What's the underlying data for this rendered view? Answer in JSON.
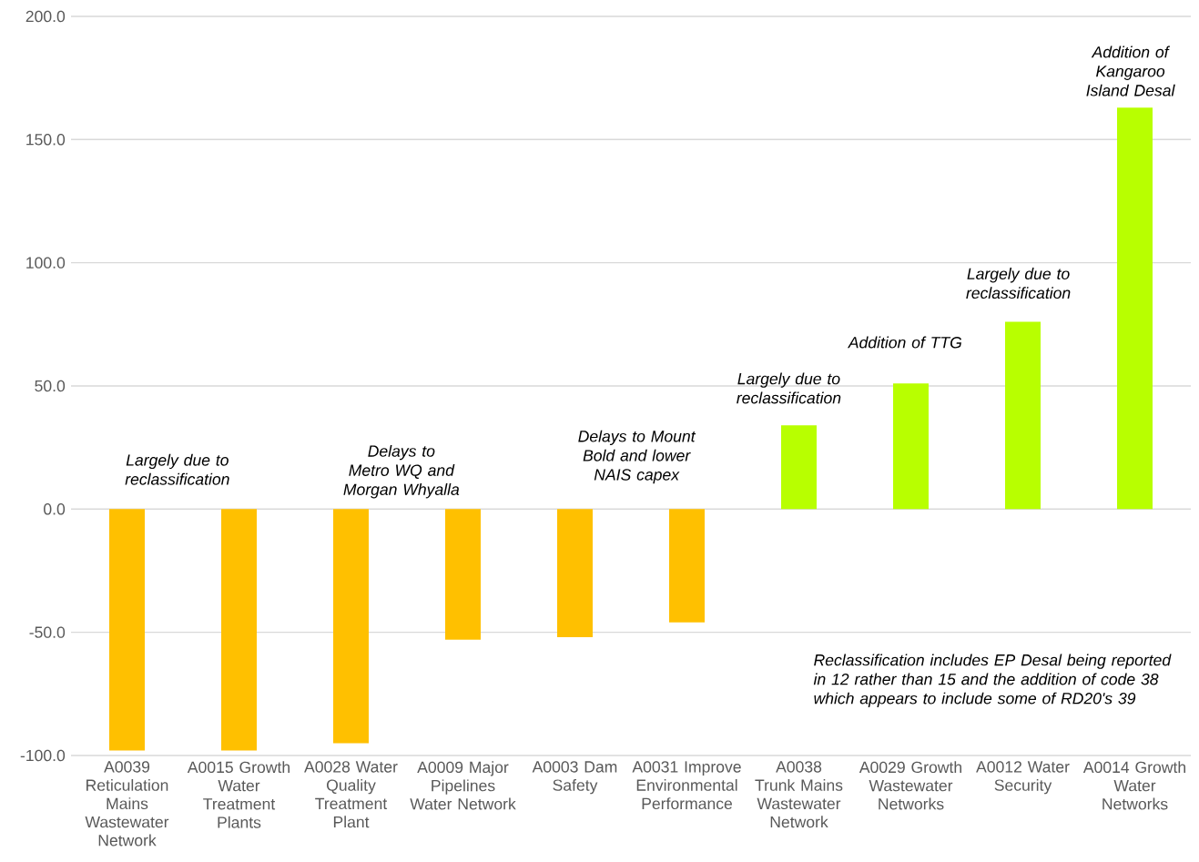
{
  "chart_data": {
    "type": "bar",
    "categories": [
      "A0039 Reticulation Mains Wastewater Network",
      "A0015 Growth Water Treatment Plants",
      "A0028 Water Quality Treatment Plant",
      "A0009 Major Pipelines Water Network",
      "A0003 Dam Safety",
      "A0031 Improve Environmental Performance",
      "A0038 Trunk Mains Wastewater Network",
      "A0029 Growth Wastewater Networks",
      "A0012 Water Security",
      "A0014 Growth Water Networks"
    ],
    "values": [
      -98,
      -98,
      -95,
      -53,
      -52,
      -46,
      34,
      51,
      76,
      163
    ],
    "colors": [
      "#ffc000",
      "#ffc000",
      "#ffc000",
      "#ffc000",
      "#ffc000",
      "#ffc000",
      "#b8ff00",
      "#b8ff00",
      "#b8ff00",
      "#b8ff00"
    ],
    "ylim": [
      -100,
      200
    ],
    "yticks": [
      {
        "value": -100,
        "label": "-100.0"
      },
      {
        "value": -50,
        "label": "-50.0"
      },
      {
        "value": 0,
        "label": "0.0"
      },
      {
        "value": 50,
        "label": "50.0"
      },
      {
        "value": 100,
        "label": "100.0"
      },
      {
        "value": 150,
        "label": "150.0"
      },
      {
        "value": 200,
        "label": "200.0"
      }
    ],
    "grid": "y",
    "annotations": [
      "Largely due to reclassification",
      "Delays to Metro WQ and Morgan Whyalla",
      "Delays to Mount Bold and lower NAIS capex",
      "Largely due to reclassification",
      "Addition of TTG",
      "Largely due to reclassification",
      "Addition of Kangaroo Island Desal",
      "Reclassification includes EP Desal being reported in 12 rather than 15 and the addition of code 38 which appears to include some of RD20's 39"
    ]
  }
}
